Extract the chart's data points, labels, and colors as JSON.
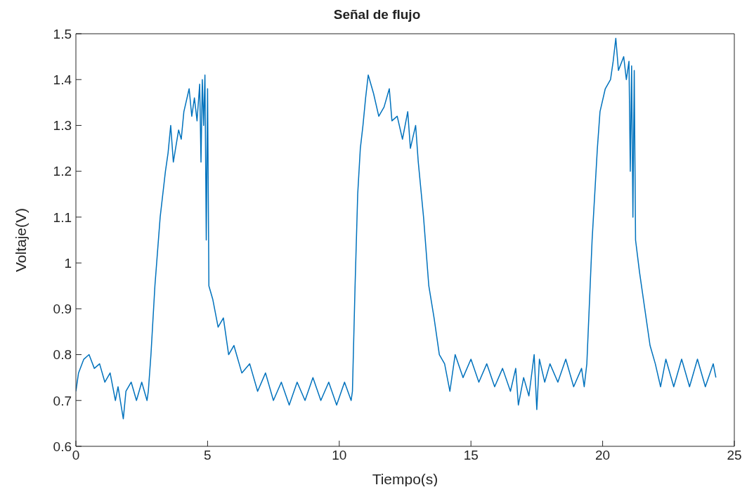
{
  "chart_data": {
    "type": "line",
    "title": "Señal de flujo",
    "xlabel": "Tiempo(s)",
    "ylabel": "Voltaje(V)",
    "xlim": [
      0,
      25
    ],
    "xticks": [
      0,
      5,
      10,
      15,
      20,
      25
    ],
    "ylim": [
      0.6,
      1.5
    ],
    "yticks": [
      0.6,
      0.7,
      0.8,
      0.9,
      1,
      1.1,
      1.2,
      1.3,
      1.4,
      1.5
    ],
    "grid": false,
    "legend": false,
    "marker": "none",
    "line_style": "solid",
    "series": [
      {
        "color": "#0072bd",
        "x": [
          0,
          0.1,
          0.3,
          0.5,
          0.7,
          0.9,
          1.1,
          1.3,
          1.5,
          1.6,
          1.8,
          1.9,
          2.1,
          2.3,
          2.5,
          2.7,
          2.75,
          2.85,
          3.0,
          3.2,
          3.4,
          3.5,
          3.6,
          3.7,
          3.9,
          4.0,
          4.1,
          4.3,
          4.4,
          4.5,
          4.6,
          4.7,
          4.75,
          4.8,
          4.85,
          4.9,
          4.95,
          5.0,
          5.05,
          5.2,
          5.4,
          5.6,
          5.8,
          6.0,
          6.3,
          6.6,
          6.9,
          7.2,
          7.5,
          7.8,
          8.1,
          8.4,
          8.7,
          9.0,
          9.3,
          9.6,
          9.9,
          10.2,
          10.45,
          10.5,
          10.6,
          10.7,
          10.8,
          10.9,
          11.0,
          11.1,
          11.3,
          11.5,
          11.7,
          11.9,
          12.0,
          12.2,
          12.4,
          12.6,
          12.7,
          12.9,
          13.0,
          13.2,
          13.4,
          13.6,
          13.8,
          14.0,
          14.2,
          14.4,
          14.7,
          15.0,
          15.3,
          15.6,
          15.9,
          16.2,
          16.5,
          16.7,
          16.8,
          17.0,
          17.2,
          17.4,
          17.5,
          17.6,
          17.8,
          18.0,
          18.3,
          18.6,
          18.9,
          19.2,
          19.3,
          19.4,
          19.6,
          19.8,
          19.9,
          20.1,
          20.3,
          20.4,
          20.5,
          20.6,
          20.8,
          20.9,
          21.0,
          21.05,
          21.1,
          21.15,
          21.2,
          21.25,
          21.4,
          21.6,
          21.8,
          22.0,
          22.2,
          22.4,
          22.7,
          23.0,
          23.3,
          23.6,
          23.9,
          24.2,
          24.3
        ],
        "values": [
          0.72,
          0.76,
          0.79,
          0.8,
          0.77,
          0.78,
          0.74,
          0.76,
          0.7,
          0.73,
          0.66,
          0.72,
          0.74,
          0.7,
          0.74,
          0.7,
          0.72,
          0.8,
          0.95,
          1.1,
          1.2,
          1.24,
          1.3,
          1.22,
          1.29,
          1.27,
          1.33,
          1.38,
          1.32,
          1.36,
          1.31,
          1.39,
          1.22,
          1.4,
          1.3,
          1.41,
          1.05,
          1.38,
          0.95,
          0.92,
          0.86,
          0.88,
          0.8,
          0.82,
          0.76,
          0.78,
          0.72,
          0.76,
          0.7,
          0.74,
          0.69,
          0.74,
          0.7,
          0.75,
          0.7,
          0.74,
          0.69,
          0.74,
          0.7,
          0.72,
          0.95,
          1.15,
          1.25,
          1.3,
          1.36,
          1.41,
          1.37,
          1.32,
          1.34,
          1.38,
          1.31,
          1.32,
          1.27,
          1.33,
          1.25,
          1.3,
          1.22,
          1.1,
          0.95,
          0.88,
          0.8,
          0.78,
          0.72,
          0.8,
          0.75,
          0.79,
          0.74,
          0.78,
          0.73,
          0.77,
          0.72,
          0.77,
          0.69,
          0.75,
          0.71,
          0.8,
          0.68,
          0.79,
          0.74,
          0.78,
          0.74,
          0.79,
          0.73,
          0.77,
          0.73,
          0.78,
          1.05,
          1.25,
          1.33,
          1.38,
          1.4,
          1.44,
          1.49,
          1.42,
          1.45,
          1.4,
          1.44,
          1.2,
          1.43,
          1.1,
          1.42,
          1.05,
          0.98,
          0.9,
          0.82,
          0.78,
          0.73,
          0.79,
          0.73,
          0.79,
          0.73,
          0.79,
          0.73,
          0.78,
          0.75
        ]
      }
    ]
  }
}
